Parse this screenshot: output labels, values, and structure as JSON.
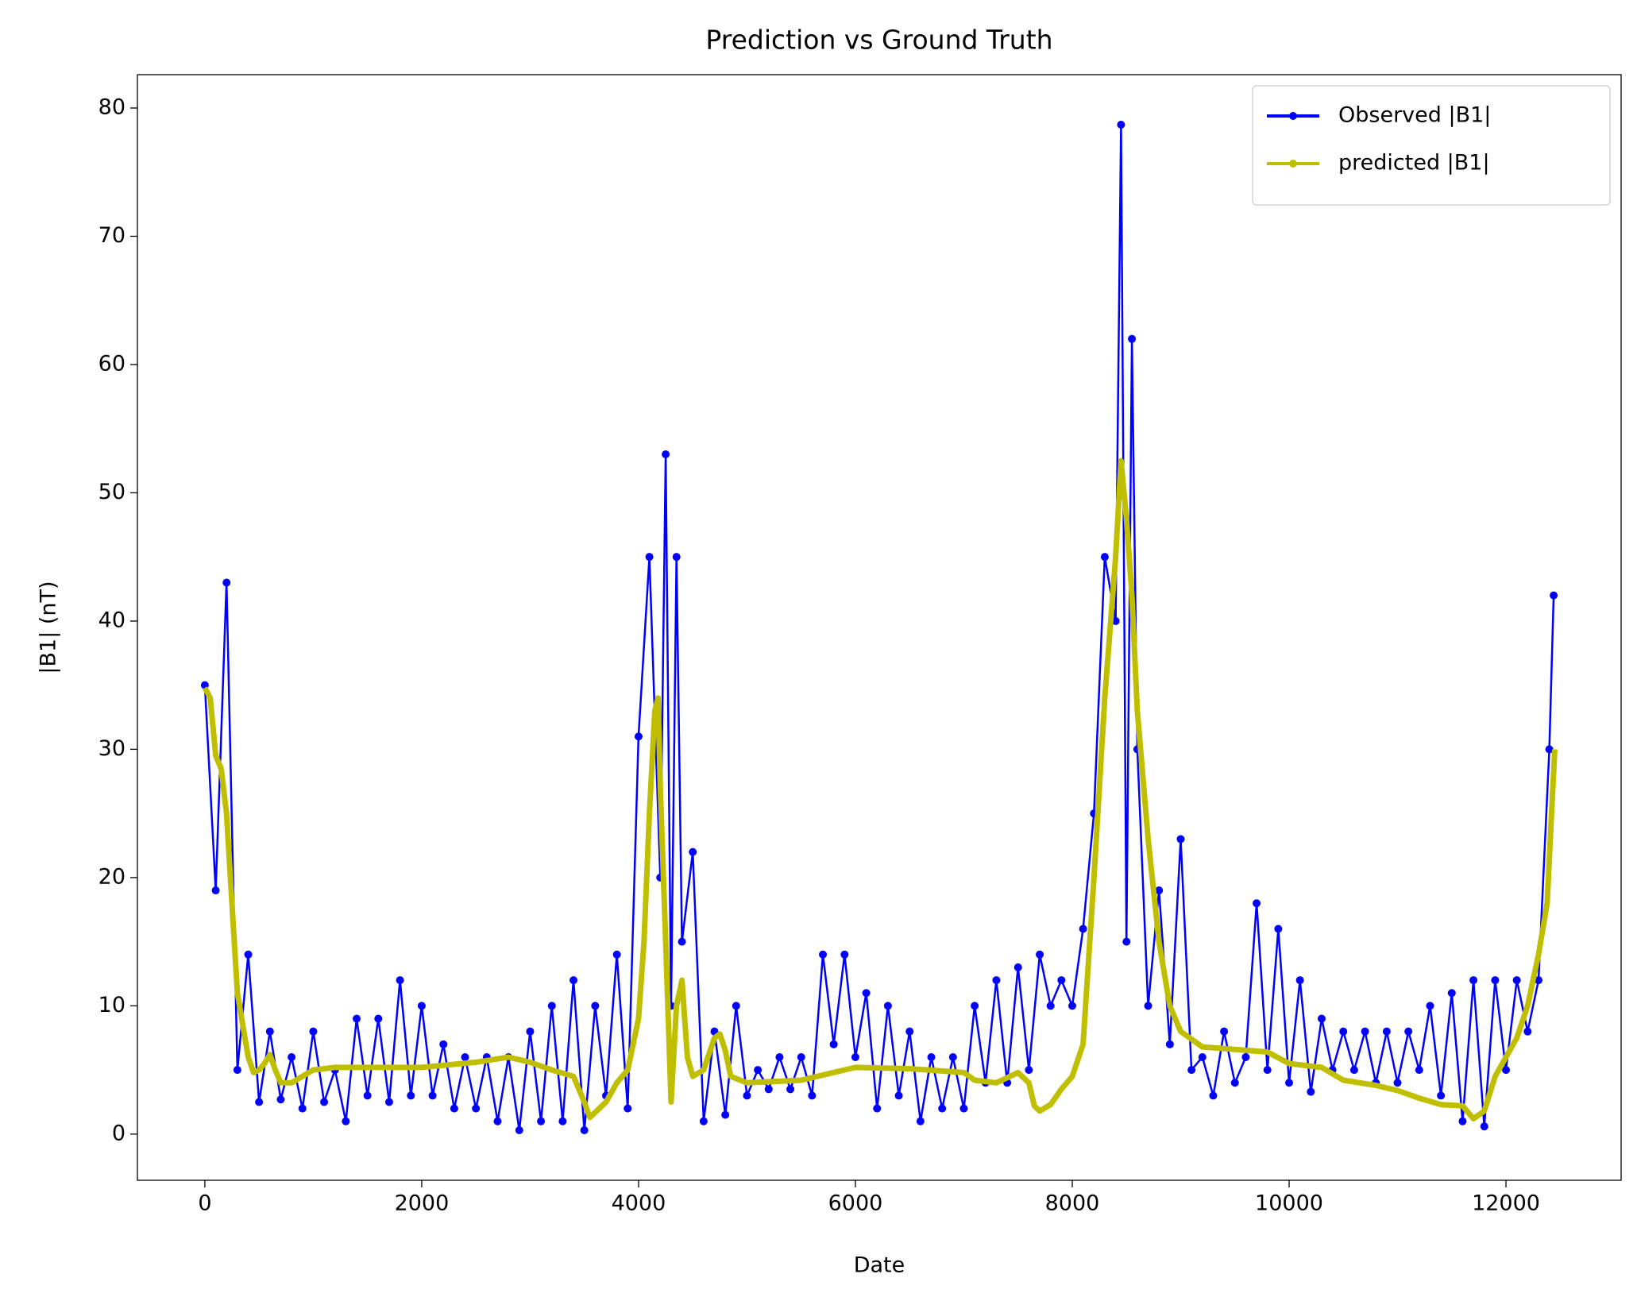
{
  "chart_data": {
    "type": "line",
    "title": "Prediction vs Ground Truth",
    "x_label": "Date",
    "y_label": "|B1| (nT)",
    "xlim": [
      -622,
      13062
    ],
    "ylim": [
      -3.6,
      82.6
    ],
    "xticks": [
      0,
      2000,
      4000,
      6000,
      8000,
      10000,
      12000
    ],
    "yticks": [
      0,
      10,
      20,
      30,
      40,
      50,
      60,
      70,
      80
    ],
    "legend": "upper right",
    "series": [
      {
        "name": "Observed |B1|",
        "color": "#0000ff",
        "width": 2.5,
        "markers": true,
        "x": [
          0,
          100,
          200,
          300,
          400,
          500,
          600,
          700,
          800,
          900,
          1000,
          1100,
          1200,
          1300,
          1400,
          1500,
          1600,
          1700,
          1800,
          1900,
          2000,
          2100,
          2200,
          2300,
          2400,
          2500,
          2600,
          2700,
          2800,
          2900,
          3000,
          3100,
          3200,
          3300,
          3400,
          3500,
          3600,
          3700,
          3800,
          3900,
          4000,
          4100,
          4200,
          4250,
          4300,
          4350,
          4400,
          4500,
          4600,
          4700,
          4800,
          4900,
          5000,
          5100,
          5200,
          5300,
          5400,
          5500,
          5600,
          5700,
          5800,
          5900,
          6000,
          6100,
          6200,
          6300,
          6400,
          6500,
          6600,
          6700,
          6800,
          6900,
          7000,
          7100,
          7200,
          7300,
          7400,
          7500,
          7600,
          7700,
          7800,
          7900,
          8000,
          8100,
          8200,
          8300,
          8400,
          8450,
          8500,
          8550,
          8600,
          8700,
          8800,
          8900,
          9000,
          9100,
          9200,
          9300,
          9400,
          9500,
          9600,
          9700,
          9800,
          9900,
          10000,
          10100,
          10200,
          10300,
          10400,
          10500,
          10600,
          10700,
          10800,
          10900,
          11000,
          11100,
          11200,
          11300,
          11400,
          11500,
          11600,
          11700,
          11800,
          11900,
          12000,
          12100,
          12200,
          12300,
          12400,
          12440
        ],
        "values": [
          35,
          19,
          43,
          5,
          14,
          2.5,
          8,
          2.7,
          6,
          2,
          8,
          2.5,
          5,
          1,
          9,
          3,
          9,
          2.5,
          12,
          3,
          10,
          3,
          7,
          2,
          6,
          2,
          6,
          1,
          6,
          0.3,
          8,
          1,
          10,
          1,
          12,
          0.3,
          10,
          3,
          14,
          2,
          31,
          45,
          20,
          53,
          10,
          45,
          15,
          22,
          1,
          8,
          1.5,
          10,
          3,
          5,
          3.5,
          6,
          3.5,
          6,
          3,
          14,
          7,
          14,
          6,
          11,
          2,
          10,
          3,
          8,
          1,
          6,
          2,
          6,
          2,
          10,
          4,
          12,
          4,
          13,
          5,
          14,
          10,
          12,
          10,
          16,
          25,
          45,
          40,
          78.7,
          15,
          62,
          30,
          10,
          19,
          7,
          23,
          5,
          6,
          3,
          8,
          4,
          6,
          18,
          5,
          16,
          4,
          12,
          3.3,
          9,
          5,
          8,
          5,
          8,
          4,
          8,
          4,
          8,
          5,
          10,
          3,
          11,
          1,
          12,
          0.6,
          12,
          5,
          12,
          8,
          12,
          30,
          42
        ]
      },
      {
        "name": "predicted |B1|",
        "color": "#bfbf00",
        "width": 7,
        "markers": false,
        "x": [
          0,
          50,
          100,
          150,
          200,
          250,
          300,
          400,
          450,
          500,
          550,
          600,
          650,
          700,
          800,
          900,
          1000,
          1200,
          1500,
          2000,
          2500,
          2800,
          3000,
          3200,
          3400,
          3500,
          3550,
          3700,
          3800,
          3900,
          4000,
          4050,
          4100,
          4150,
          4180,
          4200,
          4250,
          4300,
          4350,
          4400,
          4450,
          4500,
          4600,
          4700,
          4750,
          4800,
          4850,
          5000,
          5500,
          6000,
          6500,
          7000,
          7100,
          7300,
          7500,
          7600,
          7650,
          7700,
          7800,
          7900,
          8000,
          8100,
          8200,
          8300,
          8400,
          8450,
          8500,
          8550,
          8600,
          8700,
          8800,
          8900,
          9000,
          9200,
          9500,
          9800,
          10000,
          10300,
          10500,
          10800,
          11000,
          11200,
          11400,
          11600,
          11700,
          11800,
          11900,
          12000,
          12100,
          12200,
          12300,
          12380,
          12420,
          12450
        ],
        "values": [
          34.8,
          34,
          29.5,
          28.5,
          25,
          18,
          11,
          6,
          4.8,
          5,
          5.5,
          6.2,
          5,
          4,
          4,
          4.5,
          5,
          5.2,
          5.2,
          5.2,
          5.6,
          6,
          5.6,
          5,
          4.5,
          2.5,
          1.3,
          2.5,
          4,
          5,
          9,
          15,
          25,
          33,
          34,
          27,
          15,
          2.5,
          10,
          12,
          6,
          4.5,
          5,
          7.5,
          7.8,
          6.5,
          4.5,
          4,
          4.2,
          5.2,
          5.1,
          4.8,
          4.2,
          4,
          4.8,
          4,
          2.2,
          1.8,
          2.3,
          3.5,
          4.5,
          7,
          20,
          34,
          45,
          52.5,
          48,
          42,
          33,
          23,
          15,
          10,
          8,
          6.8,
          6.6,
          6.4,
          5.5,
          5.2,
          4.2,
          3.8,
          3.4,
          2.8,
          2.3,
          2.2,
          1.2,
          1.8,
          4.5,
          6,
          7.5,
          10,
          14,
          18,
          25,
          30
        ]
      }
    ]
  }
}
